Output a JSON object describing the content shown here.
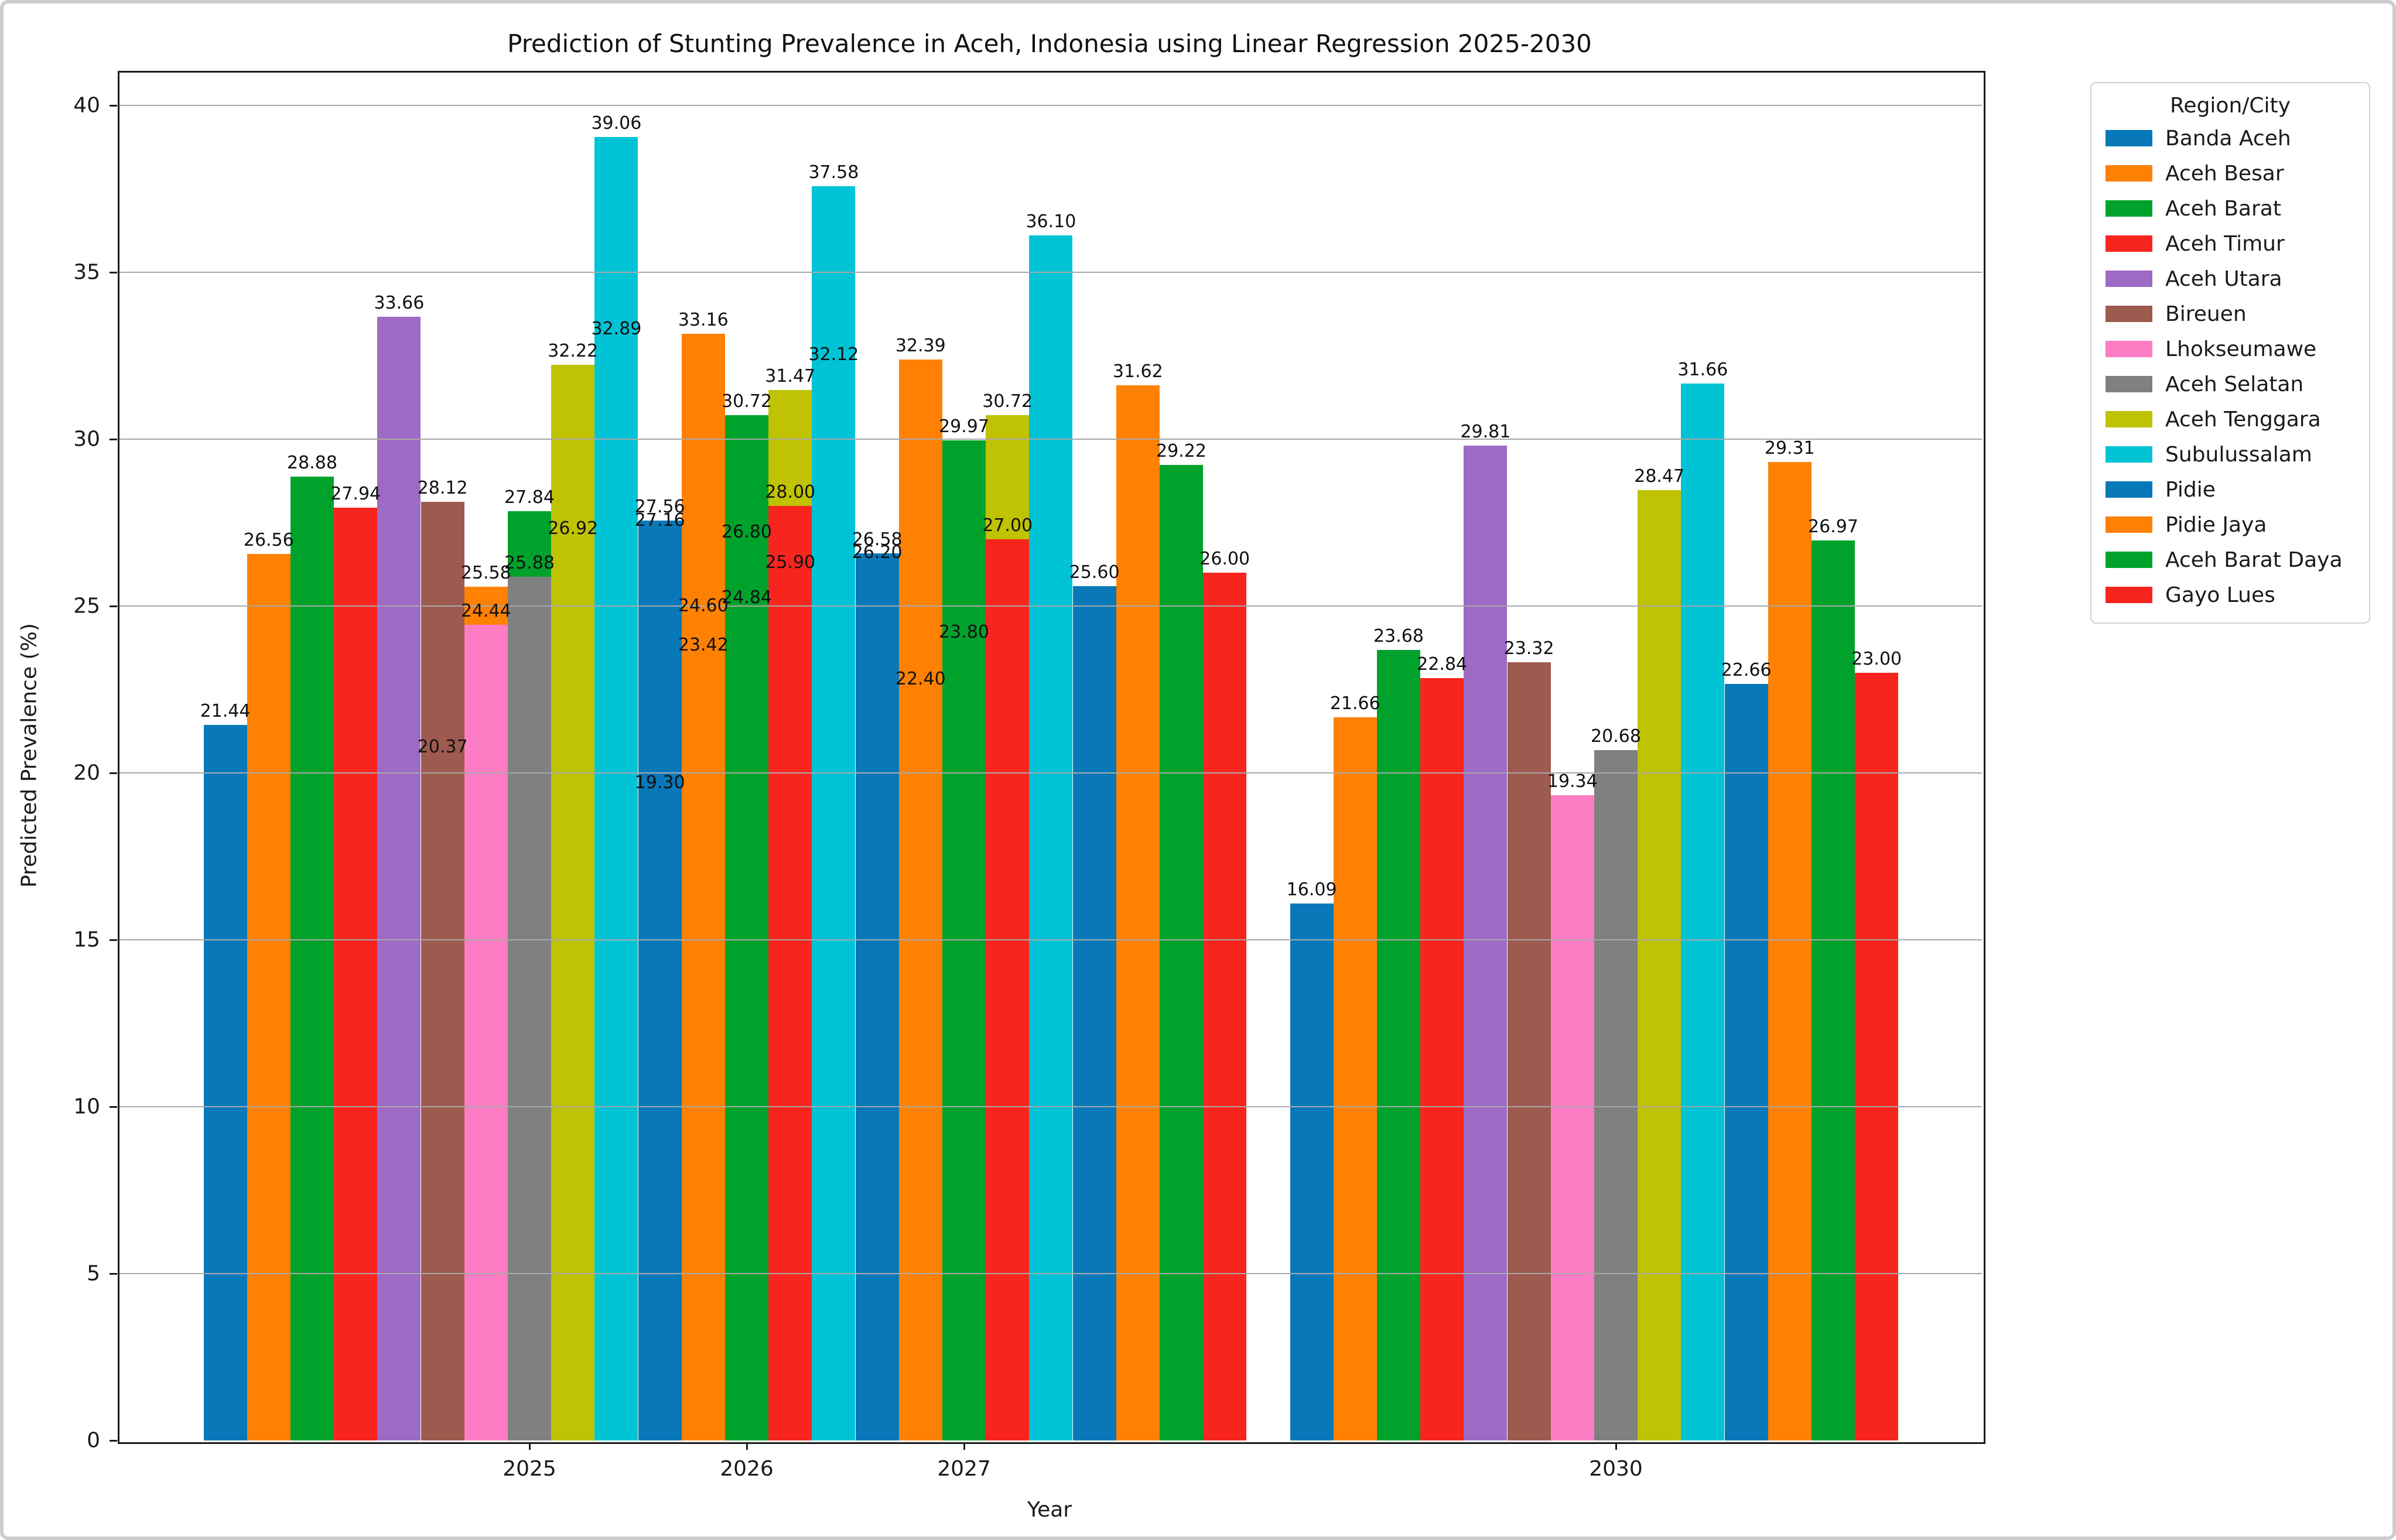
{
  "figure": {
    "title": "Prediction of Stunting Prevalence in Aceh, Indonesia using Linear Regression 2025-2030",
    "xlabel": "Year",
    "ylabel": "Predicted Prevalence (%)"
  },
  "legend": {
    "title": "Region/City"
  },
  "chart_data": {
    "type": "bar",
    "title": "Prediction of Stunting Prevalence in Aceh, Indonesia using Linear Regression 2025-2030",
    "xlabel": "Year",
    "ylabel": "Predicted Prevalence (%)",
    "x": [
      2025,
      2026,
      2027,
      2030
    ],
    "xtick_labels": [
      "2025",
      "2026",
      "2027",
      "2030"
    ],
    "yticks": [
      0,
      5,
      10,
      15,
      20,
      25,
      30,
      35,
      40
    ],
    "ylim": [
      0,
      41.1
    ],
    "grid": "horizontal, drawn over bars",
    "legend_position": "outside upper right",
    "bar_width_years": 0.2,
    "bar_layout_rule": "bar center x = year + 0.2 * (region_index - 7); later regions drawn in front; value labels always on top",
    "value_label_decimals": 2,
    "series": [
      {
        "name": "Banda Aceh",
        "color": "#0878b8",
        "values": [
          21.44,
          20.37,
          19.3,
          16.09
        ]
      },
      {
        "name": "Aceh Besar",
        "color": "#ff8103",
        "values": [
          26.56,
          25.58,
          24.6,
          21.66
        ]
      },
      {
        "name": "Aceh Barat",
        "color": "#00a22b",
        "values": [
          28.88,
          27.84,
          26.8,
          23.68
        ]
      },
      {
        "name": "Aceh Timur",
        "color": "#f8251f",
        "values": [
          27.94,
          26.92,
          25.9,
          22.84
        ]
      },
      {
        "name": "Aceh Utara",
        "color": "#9d6ac4",
        "values": [
          33.66,
          32.89,
          32.12,
          29.81
        ]
      },
      {
        "name": "Bireuen",
        "color": "#9d5a4e",
        "values": [
          28.12,
          27.16,
          26.2,
          23.32
        ]
      },
      {
        "name": "Lhokseumawe",
        "color": "#fc7dc4",
        "values": [
          24.44,
          23.42,
          22.4,
          19.34
        ]
      },
      {
        "name": "Aceh Selatan",
        "color": "#808080",
        "values": [
          25.88,
          24.84,
          23.8,
          20.68
        ]
      },
      {
        "name": "Aceh Tenggara",
        "color": "#bfc303",
        "values": [
          32.22,
          31.47,
          30.72,
          28.47
        ]
      },
      {
        "name": "Subulussalam",
        "color": "#00c3d5",
        "values": [
          39.06,
          37.58,
          36.1,
          31.66
        ]
      },
      {
        "name": "Pidie",
        "color": "#0878b8",
        "values": [
          27.56,
          26.58,
          25.6,
          22.66
        ]
      },
      {
        "name": "Pidie Jaya",
        "color": "#ff8103",
        "values": [
          33.16,
          32.39,
          31.62,
          29.31
        ]
      },
      {
        "name": "Aceh Barat Daya",
        "color": "#00a22b",
        "values": [
          30.72,
          29.97,
          29.22,
          26.97
        ]
      },
      {
        "name": "Gayo Lues",
        "color": "#f8251f",
        "values": [
          28.0,
          27.0,
          26.0,
          23.0
        ]
      }
    ]
  }
}
